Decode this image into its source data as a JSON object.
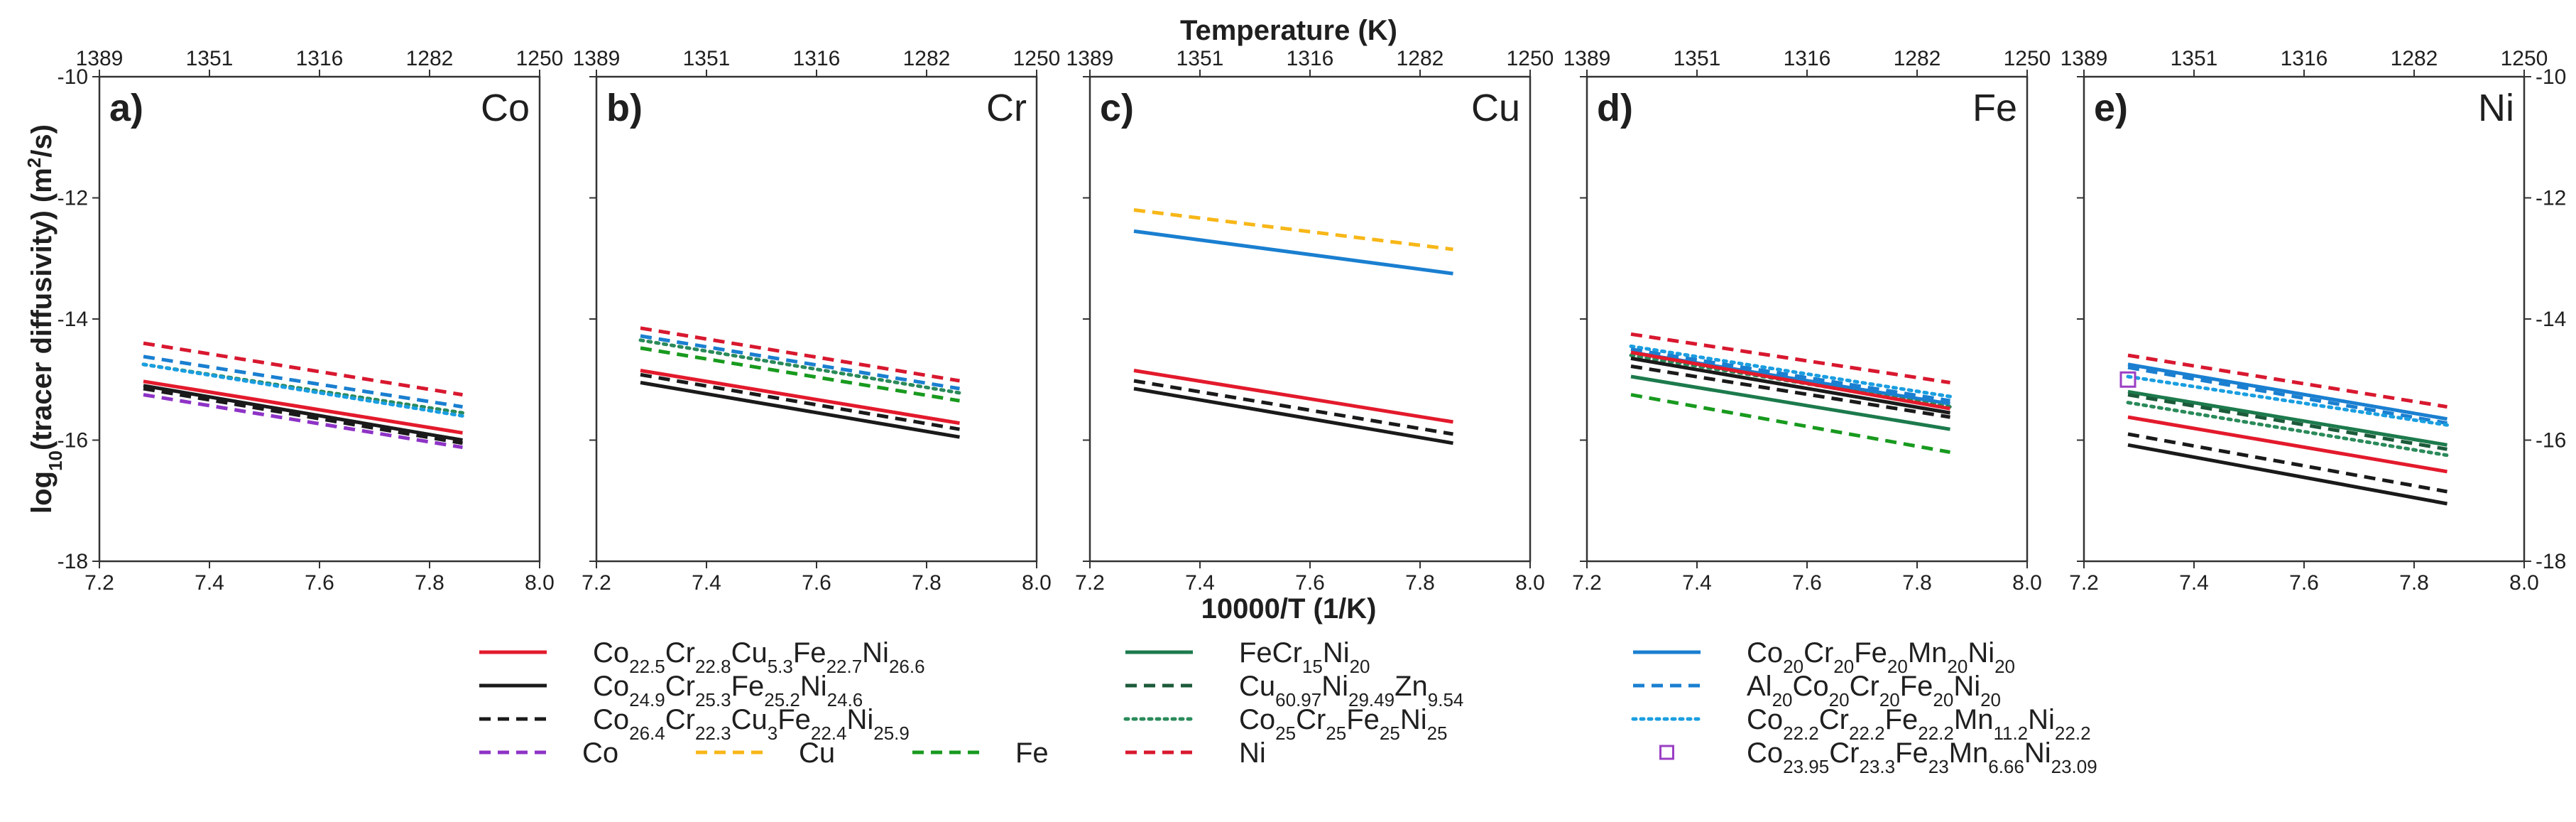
{
  "chart_data": {
    "type": "line",
    "title": "",
    "xlabel": "10000/T (1/K)",
    "top_xlabel": "Temperature (K)",
    "ylabel": "log10(tracer diffusivity) (m²/s)",
    "xlim": [
      7.2,
      8.0
    ],
    "ylim": [
      -18,
      -10
    ],
    "x_ticks": [
      "7.2",
      "7.4",
      "7.6",
      "7.8",
      "8.0"
    ],
    "y_ticks": [
      "-10",
      "-12",
      "-14",
      "-16",
      "-18"
    ],
    "top_ticks": [
      {
        "label": "1389",
        "x": 7.2
      },
      {
        "label": "1351",
        "x": 7.4
      },
      {
        "label": "1316",
        "x": 7.6
      },
      {
        "label": "1282",
        "x": 7.8
      },
      {
        "label": "1250",
        "x": 8.0
      }
    ],
    "series_styles": {
      "CoCrCuFeNi_53": {
        "color": "#e31a2c",
        "dash": "solid"
      },
      "CoCrFeNi_24": {
        "color": "#1a1a1a",
        "dash": "solid"
      },
      "CoCrCu3FeNi": {
        "color": "#1a1a1a",
        "dash": "dashed"
      },
      "Co": {
        "color": "#8e33c6",
        "dash": "dashed"
      },
      "Cu": {
        "color": "#f7b718",
        "dash": "dashed"
      },
      "Fe": {
        "color": "#189a1e",
        "dash": "dashed"
      },
      "FeCr15Ni20": {
        "color": "#1c7a4c",
        "dash": "solid"
      },
      "CuNiZn": {
        "color": "#1c5a3a",
        "dash": "dashed"
      },
      "CoCrFeNi_25": {
        "color": "#2a8a5a",
        "dash": "dotted"
      },
      "Ni": {
        "color": "#d8182f",
        "dash": "dashed"
      },
      "CoCrFeMnNi_20": {
        "color": "#1a7fd0",
        "dash": "solid"
      },
      "AlCoCrFeNi": {
        "color": "#1a7fd0",
        "dash": "dashed"
      },
      "CoCrFeMn11Ni": {
        "color": "#1a9ee0",
        "dash": "dotted"
      },
      "CoCrFeMn666Ni": {
        "color": "#9b3fc4",
        "marker": "square"
      }
    },
    "panels": [
      {
        "label": "a)",
        "element": "Co",
        "series": [
          {
            "key": "Co",
            "x": [
              7.28,
              7.86
            ],
            "y": [
              -15.25,
              -16.12
            ]
          },
          {
            "key": "CoCrFeNi_24",
            "x": [
              7.28,
              7.86
            ],
            "y": [
              -15.1,
              -16.0
            ]
          },
          {
            "key": "CoCrCu3FeNi",
            "x": [
              7.28,
              7.86
            ],
            "y": [
              -15.15,
              -16.05
            ]
          },
          {
            "key": "CoCrCuFeNi_53",
            "x": [
              7.28,
              7.86
            ],
            "y": [
              -15.03,
              -15.88
            ]
          },
          {
            "key": "CoCrFeNi_25",
            "x": [
              7.28,
              7.86
            ],
            "y": [
              -14.75,
              -15.55
            ]
          },
          {
            "key": "AlCoCrFeNi",
            "x": [
              7.28,
              7.86
            ],
            "y": [
              -14.62,
              -15.45
            ]
          },
          {
            "key": "CoCrFeMn11Ni",
            "x": [
              7.28,
              7.86
            ],
            "y": [
              -14.75,
              -15.6
            ]
          },
          {
            "key": "Ni",
            "x": [
              7.28,
              7.86
            ],
            "y": [
              -14.4,
              -15.25
            ]
          }
        ]
      },
      {
        "label": "b)",
        "element": "Cr",
        "series": [
          {
            "key": "CoCrFeNi_24",
            "x": [
              7.28,
              7.86
            ],
            "y": [
              -15.05,
              -15.95
            ]
          },
          {
            "key": "CoCrCu3FeNi",
            "x": [
              7.28,
              7.86
            ],
            "y": [
              -14.92,
              -15.82
            ]
          },
          {
            "key": "CoCrCuFeNi_53",
            "x": [
              7.28,
              7.86
            ],
            "y": [
              -14.85,
              -15.72
            ]
          },
          {
            "key": "Fe",
            "x": [
              7.28,
              7.86
            ],
            "y": [
              -14.48,
              -15.35
            ]
          },
          {
            "key": "CoCrFeNi_25",
            "x": [
              7.28,
              7.86
            ],
            "y": [
              -14.35,
              -15.22
            ]
          },
          {
            "key": "AlCoCrFeNi",
            "x": [
              7.28,
              7.86
            ],
            "y": [
              -14.28,
              -15.15
            ]
          },
          {
            "key": "Ni",
            "x": [
              7.28,
              7.86
            ],
            "y": [
              -14.15,
              -15.02
            ]
          }
        ]
      },
      {
        "label": "c)",
        "element": "Cu",
        "series": [
          {
            "key": "Cu",
            "x": [
              7.28,
              7.86
            ],
            "y": [
              -12.2,
              -12.85
            ]
          },
          {
            "key": "CoCrFeMnNi_20",
            "x": [
              7.28,
              7.86
            ],
            "y": [
              -12.55,
              -13.25
            ]
          },
          {
            "key": "CoCrCuFeNi_53",
            "x": [
              7.28,
              7.86
            ],
            "y": [
              -14.85,
              -15.7
            ]
          },
          {
            "key": "CoCrCu3FeNi",
            "x": [
              7.28,
              7.86
            ],
            "y": [
              -15.02,
              -15.9
            ]
          },
          {
            "key": "CoCrFeNi_24",
            "x": [
              7.28,
              7.86
            ],
            "y": [
              -15.15,
              -16.05
            ]
          }
        ]
      },
      {
        "label": "d)",
        "element": "Fe",
        "series": [
          {
            "key": "Ni",
            "x": [
              7.28,
              7.86
            ],
            "y": [
              -14.25,
              -15.05
            ]
          },
          {
            "key": "CoCrFeMn11Ni",
            "x": [
              7.28,
              7.86
            ],
            "y": [
              -14.45,
              -15.28
            ]
          },
          {
            "key": "AlCoCrFeNi",
            "x": [
              7.28,
              7.86
            ],
            "y": [
              -14.5,
              -15.35
            ]
          },
          {
            "key": "CoCrFeMnNi_20",
            "x": [
              7.28,
              7.86
            ],
            "y": [
              -14.55,
              -15.4
            ]
          },
          {
            "key": "CoCrFeNi_25",
            "x": [
              7.28,
              7.86
            ],
            "y": [
              -14.6,
              -15.45
            ]
          },
          {
            "key": "CoCrCuFeNi_53",
            "x": [
              7.28,
              7.86
            ],
            "y": [
              -14.55,
              -15.48
            ]
          },
          {
            "key": "CoCrFeNi_24",
            "x": [
              7.28,
              7.86
            ],
            "y": [
              -14.65,
              -15.55
            ]
          },
          {
            "key": "CoCrCu3FeNi",
            "x": [
              7.28,
              7.86
            ],
            "y": [
              -14.78,
              -15.62
            ]
          },
          {
            "key": "FeCr15Ni20",
            "x": [
              7.28,
              7.86
            ],
            "y": [
              -14.95,
              -15.82
            ]
          },
          {
            "key": "Fe",
            "x": [
              7.28,
              7.86
            ],
            "y": [
              -15.25,
              -16.2
            ]
          }
        ]
      },
      {
        "label": "e)",
        "element": "Ni",
        "series": [
          {
            "key": "Ni",
            "x": [
              7.28,
              7.86
            ],
            "y": [
              -14.6,
              -15.45
            ]
          },
          {
            "key": "CoCrFeMnNi_20",
            "x": [
              7.28,
              7.86
            ],
            "y": [
              -14.75,
              -15.65
            ]
          },
          {
            "key": "AlCoCrFeNi",
            "x": [
              7.28,
              7.86
            ],
            "y": [
              -14.8,
              -15.72
            ]
          },
          {
            "key": "CoCrFeMn11Ni",
            "x": [
              7.28,
              7.86
            ],
            "y": [
              -14.95,
              -15.75
            ]
          },
          {
            "key": "FeCr15Ni20",
            "x": [
              7.28,
              7.86
            ],
            "y": [
              -15.2,
              -16.08
            ]
          },
          {
            "key": "CuNiZn",
            "x": [
              7.28,
              7.86
            ],
            "y": [
              -15.25,
              -16.15
            ]
          },
          {
            "key": "CoCrFeNi_25",
            "x": [
              7.28,
              7.86
            ],
            "y": [
              -15.38,
              -16.25
            ]
          },
          {
            "key": "CoCrCuFeNi_53",
            "x": [
              7.28,
              7.86
            ],
            "y": [
              -15.62,
              -16.52
            ]
          },
          {
            "key": "CoCrCu3FeNi",
            "x": [
              7.28,
              7.86
            ],
            "y": [
              -15.9,
              -16.85
            ]
          },
          {
            "key": "CoCrFeNi_24",
            "x": [
              7.28,
              7.86
            ],
            "y": [
              -16.08,
              -17.05
            ]
          }
        ],
        "points": [
          {
            "key": "CoCrFeMn666Ni",
            "x": 7.28,
            "y": -15.0
          }
        ]
      }
    ],
    "legend": {
      "placement": "bottom",
      "columns": [
        [
          {
            "key": "CoCrCuFeNi_53",
            "parts": [
              [
                "Co",
                ""
              ],
              [
                "22.5",
                "sub"
              ],
              [
                "Cr",
                ""
              ],
              [
                "22.8",
                "sub"
              ],
              [
                "Cu",
                ""
              ],
              [
                "5.3",
                "sub"
              ],
              [
                "Fe",
                ""
              ],
              [
                "22.7",
                "sub"
              ],
              [
                "Ni",
                ""
              ],
              [
                "26.6",
                "sub"
              ]
            ]
          },
          {
            "key": "CoCrFeNi_24",
            "parts": [
              [
                "Co",
                ""
              ],
              [
                "24.9",
                "sub"
              ],
              [
                "Cr",
                ""
              ],
              [
                "25.3",
                "sub"
              ],
              [
                "Fe",
                ""
              ],
              [
                "25.2",
                "sub"
              ],
              [
                "Ni",
                ""
              ],
              [
                "24.6",
                "sub"
              ]
            ]
          },
          {
            "key": "CoCrCu3FeNi",
            "parts": [
              [
                "Co",
                ""
              ],
              [
                "26.4",
                "sub"
              ],
              [
                "Cr",
                ""
              ],
              [
                "22.3",
                "sub"
              ],
              [
                "Cu",
                ""
              ],
              [
                "3",
                "sub"
              ],
              [
                "Fe",
                ""
              ],
              [
                "22.4",
                "sub"
              ],
              [
                "Ni",
                ""
              ],
              [
                "25.9",
                "sub"
              ]
            ]
          }
        ],
        [
          {
            "key": "FeCr15Ni20",
            "parts": [
              [
                "FeCr",
                ""
              ],
              [
                "15",
                "sub"
              ],
              [
                "Ni",
                ""
              ],
              [
                "20",
                "sub"
              ]
            ]
          },
          {
            "key": "CuNiZn",
            "parts": [
              [
                "Cu",
                ""
              ],
              [
                "60.97",
                "sub"
              ],
              [
                "Ni",
                ""
              ],
              [
                "29.49",
                "sub"
              ],
              [
                "Zn",
                ""
              ],
              [
                "9.54",
                "sub"
              ]
            ]
          },
          {
            "key": "CoCrFeNi_25",
            "parts": [
              [
                "Co",
                ""
              ],
              [
                "25",
                "sub"
              ],
              [
                "Cr",
                ""
              ],
              [
                "25",
                "sub"
              ],
              [
                "Fe",
                ""
              ],
              [
                "25",
                "sub"
              ],
              [
                "Ni",
                ""
              ],
              [
                "25",
                "sub"
              ]
            ]
          },
          {
            "key": "Ni",
            "parts": [
              [
                "Ni",
                ""
              ]
            ]
          }
        ],
        [
          {
            "key": "CoCrFeMnNi_20",
            "parts": [
              [
                "Co",
                ""
              ],
              [
                "20",
                "sub"
              ],
              [
                "Cr",
                ""
              ],
              [
                "20",
                "sub"
              ],
              [
                "Fe",
                ""
              ],
              [
                "20",
                "sub"
              ],
              [
                "Mn",
                ""
              ],
              [
                "20",
                "sub"
              ],
              [
                "Ni",
                ""
              ],
              [
                "20",
                "sub"
              ]
            ]
          },
          {
            "key": "AlCoCrFeNi",
            "parts": [
              [
                "Al",
                ""
              ],
              [
                "20",
                "sub"
              ],
              [
                "Co",
                ""
              ],
              [
                "20",
                "sub"
              ],
              [
                "Cr",
                ""
              ],
              [
                "20",
                "sub"
              ],
              [
                "Fe",
                ""
              ],
              [
                "20",
                "sub"
              ],
              [
                "Ni",
                ""
              ],
              [
                "20",
                "sub"
              ]
            ]
          },
          {
            "key": "CoCrFeMn11Ni",
            "parts": [
              [
                "Co",
                ""
              ],
              [
                "22.2",
                "sub"
              ],
              [
                "Cr",
                ""
              ],
              [
                "22.2",
                "sub"
              ],
              [
                "Fe",
                ""
              ],
              [
                "22.2",
                "sub"
              ],
              [
                "Mn",
                ""
              ],
              [
                "11.2",
                "sub"
              ],
              [
                "Ni",
                ""
              ],
              [
                "22.2",
                "sub"
              ]
            ]
          },
          {
            "key": "CoCrFeMn666Ni",
            "parts": [
              [
                "Co",
                ""
              ],
              [
                "23.95",
                "sub"
              ],
              [
                "Cr",
                ""
              ],
              [
                "23.3",
                "sub"
              ],
              [
                "Fe",
                ""
              ],
              [
                "23",
                "sub"
              ],
              [
                "Mn",
                ""
              ],
              [
                "6.66",
                "sub"
              ],
              [
                "Ni",
                ""
              ],
              [
                "23.09",
                "sub"
              ]
            ]
          }
        ]
      ],
      "bottom_row": [
        {
          "key": "Co",
          "parts": [
            [
              "Co",
              ""
            ]
          ]
        },
        {
          "key": "Cu",
          "parts": [
            [
              "Cu",
              ""
            ]
          ]
        },
        {
          "key": "Fe",
          "parts": [
            [
              "Fe",
              ""
            ]
          ]
        }
      ]
    }
  }
}
